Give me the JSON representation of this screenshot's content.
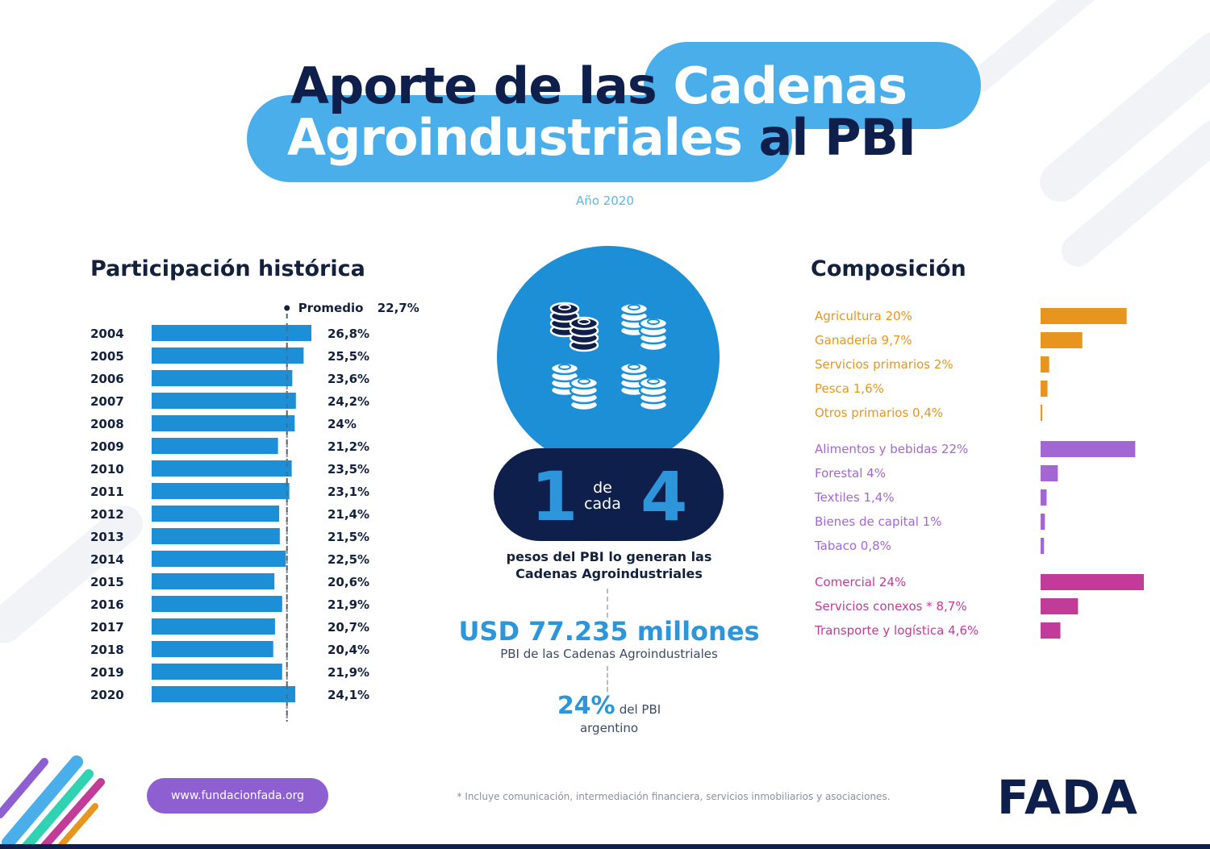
{
  "header": {
    "title_line1_dark": "Aporte de las",
    "title_line1_light": "Cadenas",
    "title_line2_light": "Agroindustriales",
    "title_line2_dark": "al PBI",
    "subtitle": "Año 2020"
  },
  "colors": {
    "navy": "#0f1f4b",
    "blue": "#1d8fd6",
    "light_blue": "#4aaeea",
    "orange": "#e8951f",
    "purple": "#a367d3",
    "magenta": "#c13b98"
  },
  "chart_data": [
    {
      "type": "bar",
      "orientation": "horizontal",
      "title": "Participación histórica",
      "categories": [
        "2004",
        "2005",
        "2006",
        "2007",
        "2008",
        "2009",
        "2010",
        "2011",
        "2012",
        "2013",
        "2014",
        "2015",
        "2016",
        "2017",
        "2018",
        "2019",
        "2020"
      ],
      "values": [
        26.8,
        25.5,
        23.6,
        24.2,
        24,
        21.2,
        23.5,
        23.1,
        21.4,
        21.5,
        22.5,
        20.6,
        21.9,
        20.7,
        20.4,
        21.9,
        24.1
      ],
      "value_labels": [
        "26,8%",
        "25,5%",
        "23,6%",
        "24,2%",
        "24%",
        "21,2%",
        "23,5%",
        "23,1%",
        "21,4%",
        "21,5%",
        "22,5%",
        "20,6%",
        "21,9%",
        "20,7%",
        "20,4%",
        "21,9%",
        "24,1%"
      ],
      "reference_line": {
        "label": "Promedio",
        "value": 22.7,
        "value_label": "22,7%"
      },
      "color": "#1d8fd6"
    },
    {
      "type": "bar",
      "orientation": "horizontal",
      "title": "Composición",
      "groups": [
        {
          "color": "#e8951f",
          "items": [
            {
              "label": "Agricultura 20%",
              "value": 20
            },
            {
              "label": "Ganadería 9,7%",
              "value": 9.7
            },
            {
              "label": "Servicios primarios 2%",
              "value": 2
            },
            {
              "label": "Pesca 1,6%",
              "value": 1.6
            },
            {
              "label": "Otros primarios 0,4%",
              "value": 0.4
            }
          ]
        },
        {
          "color": "#a367d3",
          "items": [
            {
              "label": "Alimentos y bebidas 22%",
              "value": 22
            },
            {
              "label": "Forestal 4%",
              "value": 4
            },
            {
              "label": "Textiles 1,4%",
              "value": 1.4
            },
            {
              "label": "Bienes de capital 1%",
              "value": 1
            },
            {
              "label": "Tabaco 0,8%",
              "value": 0.8
            }
          ]
        },
        {
          "color": "#c13b98",
          "items": [
            {
              "label": "Comercial 24%",
              "value": 24
            },
            {
              "label": "Servicios conexos * 8,7%",
              "value": 8.7
            },
            {
              "label": "Transporte y logística 4,6%",
              "value": 4.6
            }
          ]
        }
      ]
    }
  ],
  "center": {
    "ratio_num": "1",
    "ratio_of_1": "de",
    "ratio_of_2": "cada",
    "ratio_den": "4",
    "caption_1": "pesos del PBI lo generan las",
    "caption_2": "Cadenas Agroindustriales",
    "usd_value": "USD 77.235 millones",
    "usd_label": "PBI de las Cadenas Agroindustriales",
    "pct_value": "24%",
    "pct_label_1": "del PBI",
    "pct_label_2": "argentino",
    "icon": "coins-icon"
  },
  "footer": {
    "url": "www.fundacionfada.org",
    "footnote": "* Incluye comunicación, intermediación financiera, servicios inmobiliarios y asociaciones.",
    "logo": "FADA"
  }
}
